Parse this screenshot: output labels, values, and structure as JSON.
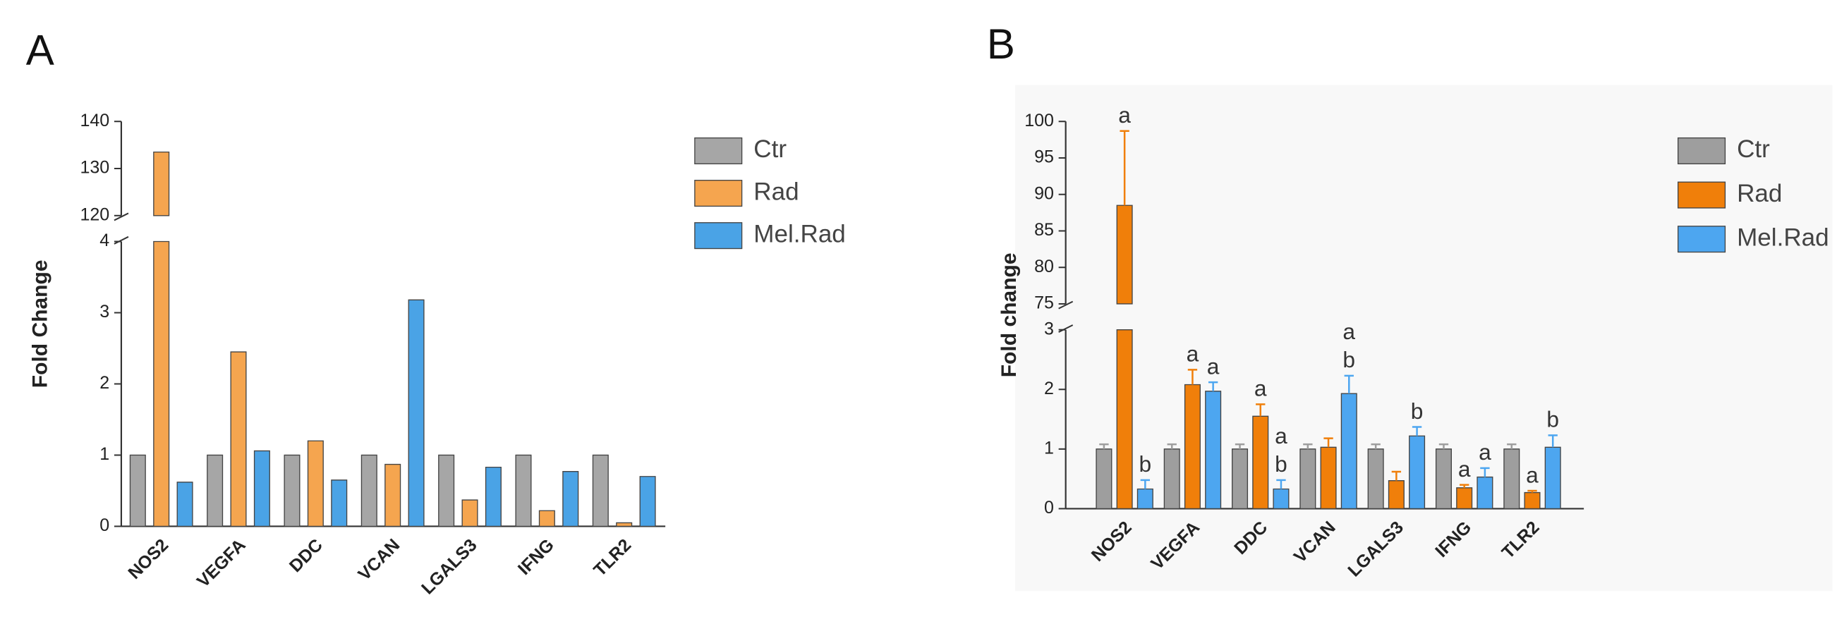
{
  "chart_data": [
    {
      "type": "bar",
      "panel_label": "A",
      "y_label": "Fold Change",
      "categories": [
        "NOS2",
        "VEGFA",
        "DDC",
        "VCAN",
        "LGALS3",
        "IFNG",
        "TLR2"
      ],
      "y_segments": [
        {
          "ylim": [
            0,
            4
          ],
          "yticks": [
            0,
            1,
            2,
            3,
            4
          ]
        },
        {
          "ylim": [
            120,
            140
          ],
          "yticks": [
            120,
            130,
            140
          ]
        }
      ],
      "series": [
        {
          "name": "Ctr",
          "color": "#a6a6a6",
          "values": [
            1,
            1,
            1,
            1,
            1,
            1,
            1
          ]
        },
        {
          "name": "Rad",
          "color": "#f5a54f",
          "values": [
            133.5,
            2.45,
            1.2,
            0.87,
            0.37,
            0.22,
            0.05
          ]
        },
        {
          "name": "Mel.Rad",
          "color": "#4aa3e6",
          "values": [
            0.62,
            1.06,
            0.65,
            3.18,
            0.83,
            0.77,
            0.7
          ]
        }
      ],
      "legend": "right"
    },
    {
      "type": "bar",
      "panel_label": "B",
      "y_label": "Fold change",
      "categories": [
        "NOS2",
        "VEGFA",
        "DDC",
        "VCAN",
        "LGALS3",
        "IFNG",
        "TLR2"
      ],
      "y_segments": [
        {
          "ylim": [
            0,
            3
          ],
          "yticks": [
            0,
            1,
            2,
            3
          ]
        },
        {
          "ylim": [
            75,
            100
          ],
          "yticks": [
            75,
            80,
            85,
            90,
            95,
            100
          ]
        }
      ],
      "series": [
        {
          "name": "Ctr",
          "color": "#9e9e9e",
          "values": [
            1,
            1,
            1,
            1,
            1,
            1,
            1
          ],
          "errors": [
            0.08,
            0.08,
            0.08,
            0.08,
            0.08,
            0.08,
            0.08
          ]
        },
        {
          "name": "Rad",
          "color": "#f07f0a",
          "values": [
            88.5,
            2.08,
            1.55,
            1.03,
            0.47,
            0.35,
            0.27
          ],
          "errors": [
            10.2,
            0.25,
            0.2,
            0.15,
            0.15,
            0.05,
            0.03
          ],
          "letters": [
            [
              "a"
            ],
            [
              "a"
            ],
            [
              "a"
            ],
            null,
            null,
            [
              "a"
            ],
            [
              "a"
            ]
          ]
        },
        {
          "name": "Mel.Rad",
          "color": "#4da6f0",
          "values": [
            0.33,
            1.97,
            0.33,
            1.93,
            1.22,
            0.53,
            1.03
          ],
          "errors": [
            0.15,
            0.15,
            0.15,
            0.3,
            0.15,
            0.15,
            0.2
          ],
          "letters": [
            [
              "b"
            ],
            [
              "a"
            ],
            [
              "a",
              "b"
            ],
            [
              "a",
              "b"
            ],
            [
              "b"
            ],
            [
              "a"
            ],
            [
              "b"
            ]
          ]
        }
      ],
      "legend": "right"
    }
  ]
}
